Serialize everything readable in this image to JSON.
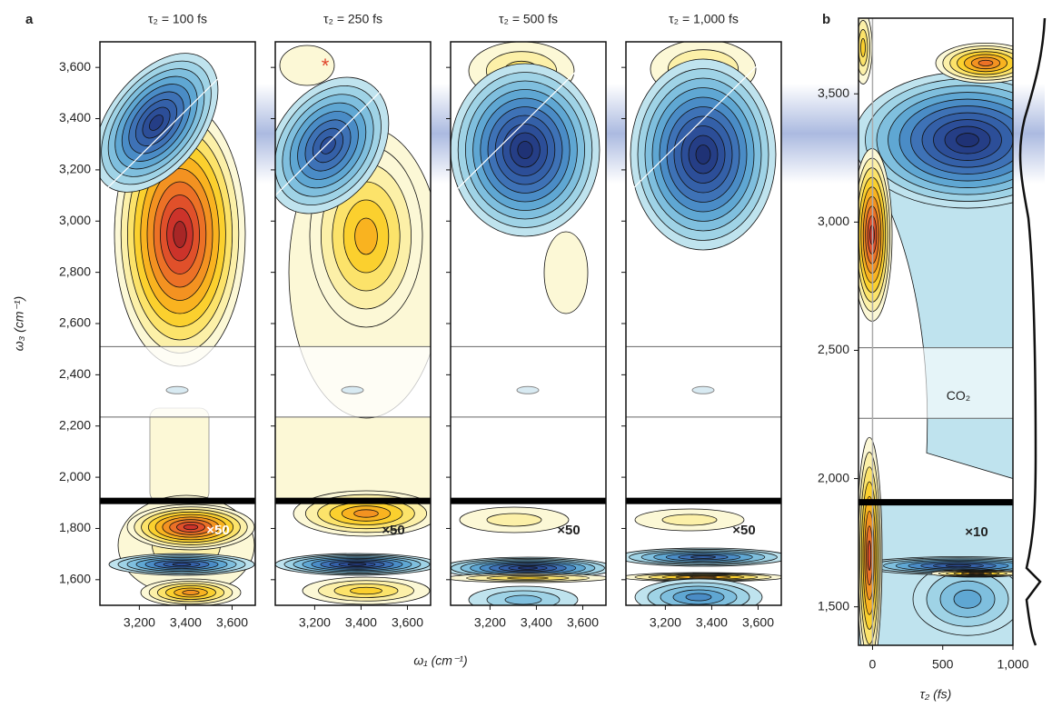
{
  "panel_a": {
    "label": "a",
    "titles": [
      "τ₂ = 100 fs",
      "τ₂ = 250 fs",
      "τ₂ = 500 fs",
      "τ₂ = 1,000 fs"
    ],
    "y_label": "ω₃ (cm⁻¹)",
    "x_label": "ω₁ (cm⁻¹)",
    "ylim": [
      1500,
      3700
    ],
    "xlim": [
      3030,
      3700
    ],
    "yticks": [
      {
        "value": 1600,
        "label": "1,600"
      },
      {
        "value": 1800,
        "label": "1,800"
      },
      {
        "value": 2000,
        "label": "2,000"
      },
      {
        "value": 2200,
        "label": "2,200"
      },
      {
        "value": 2400,
        "label": "2,400"
      },
      {
        "value": 2600,
        "label": "2,600"
      },
      {
        "value": 2800,
        "label": "2,800"
      },
      {
        "value": 3000,
        "label": "3,000"
      },
      {
        "value": 3200,
        "label": "3,200"
      },
      {
        "value": 3400,
        "label": "3,400"
      },
      {
        "value": 3600,
        "label": "3,600"
      }
    ],
    "xticks": [
      {
        "value": 3200,
        "label": "3,200"
      },
      {
        "value": 3400,
        "label": "3,400"
      },
      {
        "value": 3600,
        "label": "3,600"
      }
    ],
    "scale_labels": [
      "×50",
      "×50",
      "×50",
      "×50"
    ],
    "asterisk": "*"
  },
  "panel_b": {
    "label": "b",
    "x_label": "τ₂ (fs)",
    "ylim": [
      1350,
      3795
    ],
    "xlim": [
      -100,
      1000
    ],
    "yticks": [
      {
        "value": 1500,
        "label": "1,500"
      },
      {
        "value": 2000,
        "label": "2,000"
      },
      {
        "value": 2500,
        "label": "2,500"
      },
      {
        "value": 3000,
        "label": "3,000"
      },
      {
        "value": 3500,
        "label": "3,500"
      }
    ],
    "xticks": [
      0,
      500,
      {
        "value": 1000,
        "label": "1,000"
      }
    ],
    "scale_label": "×10",
    "annotation": "CO₂"
  }
}
